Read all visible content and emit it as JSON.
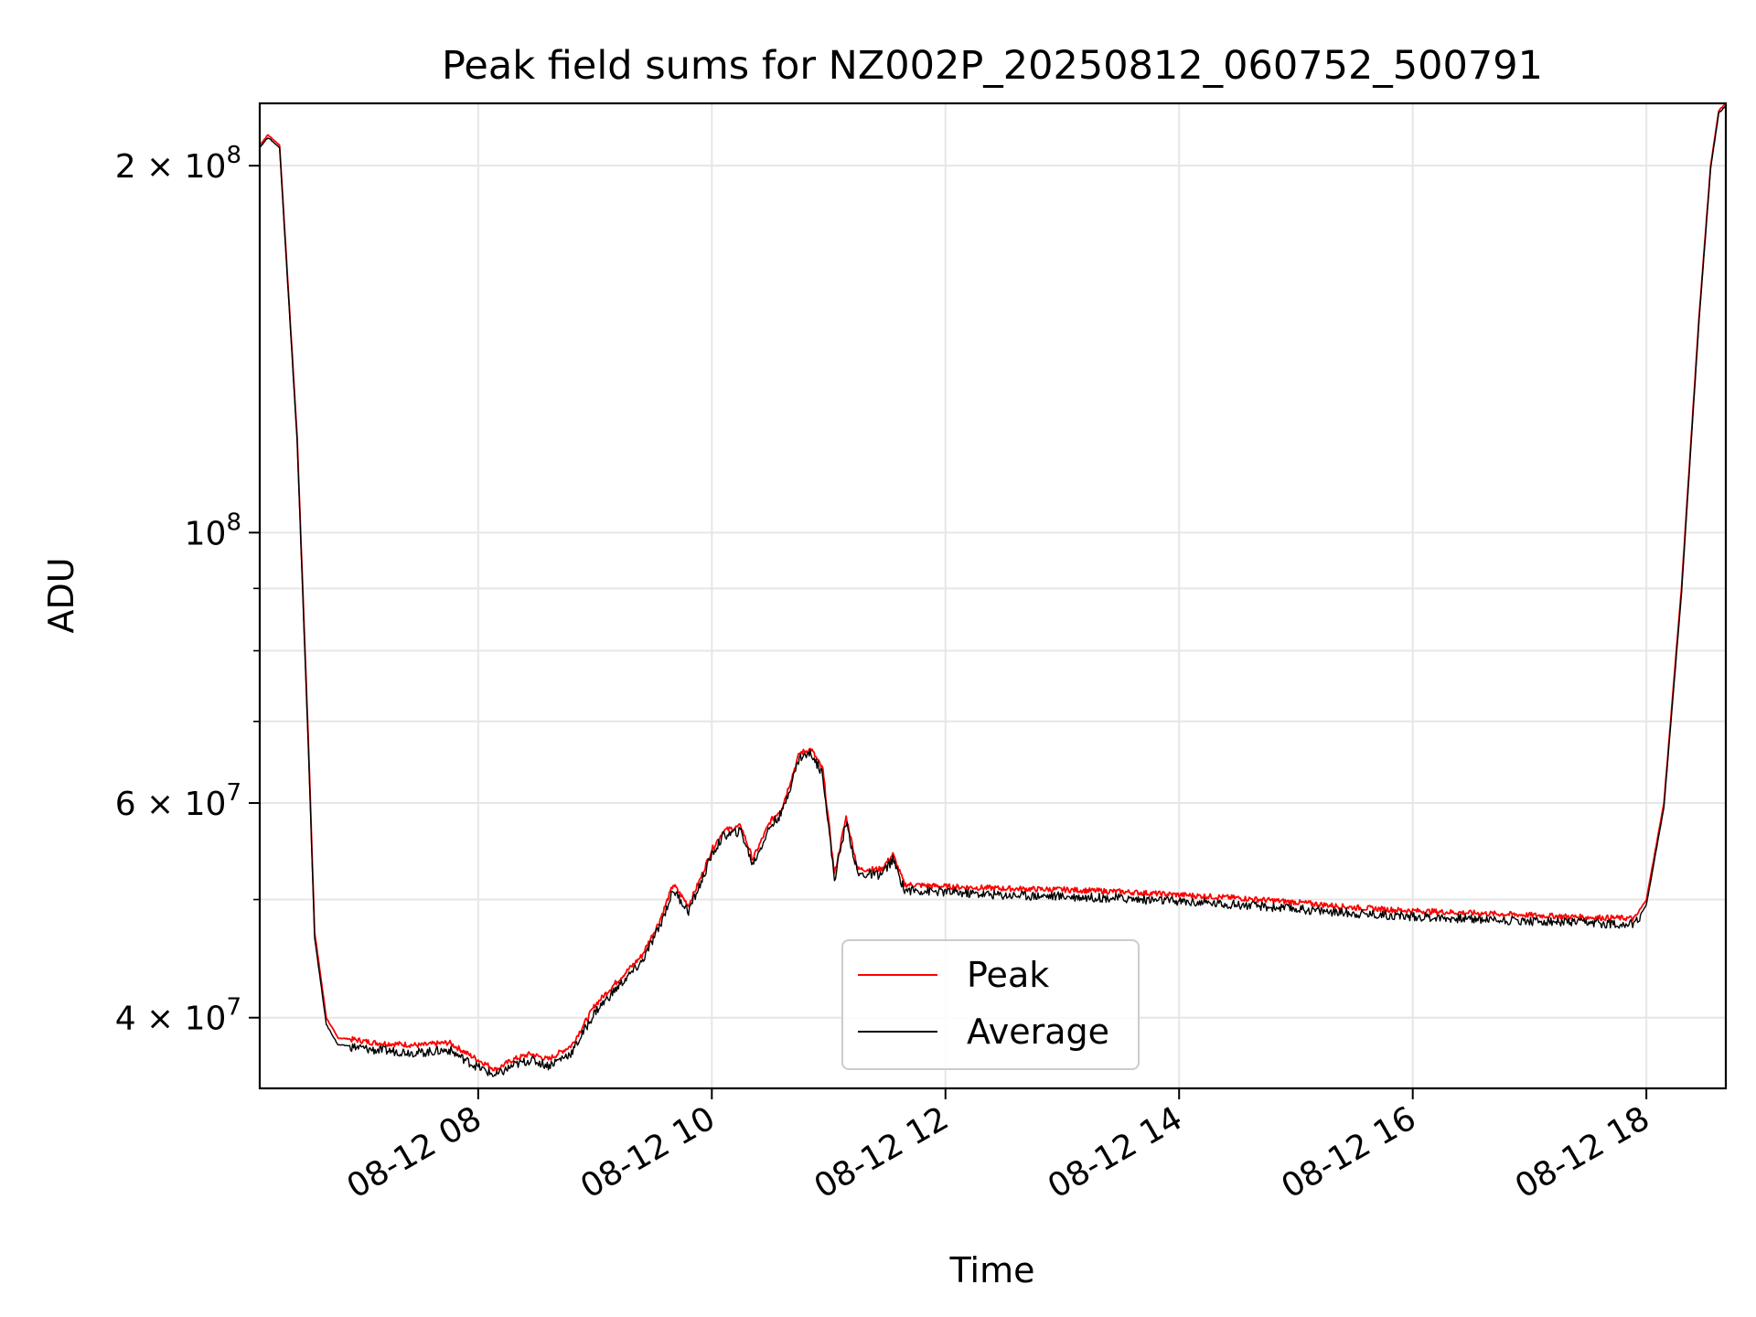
{
  "chart_data": {
    "type": "line",
    "title": "Peak field sums for NZ002P_20250812_060752_500791",
    "xlabel": "Time",
    "ylabel": "ADU",
    "yscale": "log",
    "ylim": [
      35000000,
      225000000
    ],
    "xlim_hours": [
      6.13,
      18.68
    ],
    "grid": true,
    "legend_location": "lower center",
    "x_ticks": [
      {
        "hour": 8,
        "label": "08-12 08"
      },
      {
        "hour": 10,
        "label": "08-12 10"
      },
      {
        "hour": 12,
        "label": "08-12 12"
      },
      {
        "hour": 14,
        "label": "08-12 14"
      },
      {
        "hour": 16,
        "label": "08-12 16"
      },
      {
        "hour": 18,
        "label": "08-12 18"
      }
    ],
    "y_ticks": [
      {
        "value": 40000000,
        "mantissa": "4",
        "exponent": "7",
        "label": "4 × 10^7"
      },
      {
        "value": 60000000,
        "mantissa": "6",
        "exponent": "7",
        "label": "6 × 10^7"
      },
      {
        "value": 100000000,
        "mantissa": "",
        "exponent": "8",
        "label": "10^8"
      },
      {
        "value": 200000000,
        "mantissa": "2",
        "exponent": "8",
        "label": "2 × 10^8"
      }
    ],
    "y_minor_ticks": [
      50000000,
      70000000,
      80000000,
      90000000
    ],
    "series": [
      {
        "name": "Peak",
        "color": "#ff0000",
        "x_hours": [
          6.13,
          6.2,
          6.3,
          6.45,
          6.55,
          6.6,
          6.7,
          6.8,
          6.95,
          7.1,
          7.3,
          7.5,
          7.75,
          7.95,
          8.15,
          8.3,
          8.45,
          8.6,
          8.8,
          9.0,
          9.2,
          9.4,
          9.55,
          9.67,
          9.8,
          9.9,
          10.0,
          10.1,
          10.25,
          10.35,
          10.5,
          10.6,
          10.75,
          10.85,
          10.95,
          11.05,
          11.15,
          11.25,
          11.35,
          11.45,
          11.55,
          11.65,
          12.0,
          12.5,
          13.0,
          13.5,
          14.0,
          14.5,
          15.0,
          15.5,
          16.0,
          16.5,
          17.0,
          17.5,
          17.9,
          18.0,
          18.15,
          18.3,
          18.45,
          18.55,
          18.62,
          18.68
        ],
        "values": [
          208000000,
          212000000,
          208000000,
          120000000,
          66000000,
          47000000,
          40000000,
          38500000,
          38400000,
          38200000,
          38100000,
          38000000,
          38200000,
          37200000,
          36300000,
          37000000,
          37400000,
          37000000,
          38000000,
          41000000,
          43000000,
          45000000,
          48000000,
          51500000,
          49500000,
          52000000,
          55000000,
          57000000,
          57500000,
          54000000,
          58000000,
          59500000,
          66000000,
          66500000,
          64000000,
          52500000,
          58500000,
          53000000,
          53000000,
          53000000,
          54500000,
          51500000,
          51300000,
          51100000,
          51000000,
          50800000,
          50500000,
          50200000,
          49800000,
          49300000,
          49000000,
          48800000,
          48600000,
          48400000,
          48300000,
          50000000,
          60000000,
          90000000,
          150000000,
          200000000,
          222000000,
          225000000
        ]
      },
      {
        "name": "Average",
        "color": "#000000",
        "x_hours": [
          6.13,
          6.2,
          6.3,
          6.45,
          6.55,
          6.6,
          6.7,
          6.8,
          6.95,
          7.1,
          7.3,
          7.5,
          7.75,
          7.95,
          8.15,
          8.3,
          8.45,
          8.6,
          8.8,
          9.0,
          9.2,
          9.4,
          9.55,
          9.67,
          9.8,
          9.9,
          10.0,
          10.1,
          10.25,
          10.35,
          10.5,
          10.6,
          10.75,
          10.85,
          10.95,
          11.05,
          11.15,
          11.25,
          11.35,
          11.45,
          11.55,
          11.65,
          12.0,
          12.5,
          13.0,
          13.5,
          14.0,
          14.5,
          15.0,
          15.5,
          16.0,
          16.5,
          17.0,
          17.5,
          17.9,
          18.0,
          18.15,
          18.3,
          18.45,
          18.55,
          18.62,
          18.68
        ],
        "values": [
          207000000,
          211000000,
          207000000,
          119000000,
          65000000,
          46500000,
          39500000,
          38000000,
          37900000,
          37700000,
          37600000,
          37500000,
          37700000,
          36700000,
          35900000,
          36600000,
          37000000,
          36600000,
          37500000,
          40500000,
          42500000,
          44500000,
          47500000,
          51000000,
          49000000,
          51500000,
          54500000,
          56500000,
          57000000,
          53500000,
          57500000,
          59000000,
          65500000,
          66000000,
          63500000,
          52000000,
          58000000,
          52500000,
          52500000,
          52500000,
          54000000,
          51000000,
          50800000,
          50500000,
          50400000,
          50200000,
          49900000,
          49600000,
          49200000,
          48800000,
          48500000,
          48300000,
          48100000,
          47900000,
          47800000,
          49500000,
          59500000,
          89000000,
          149000000,
          199000000,
          221000000,
          224000000
        ]
      }
    ]
  }
}
